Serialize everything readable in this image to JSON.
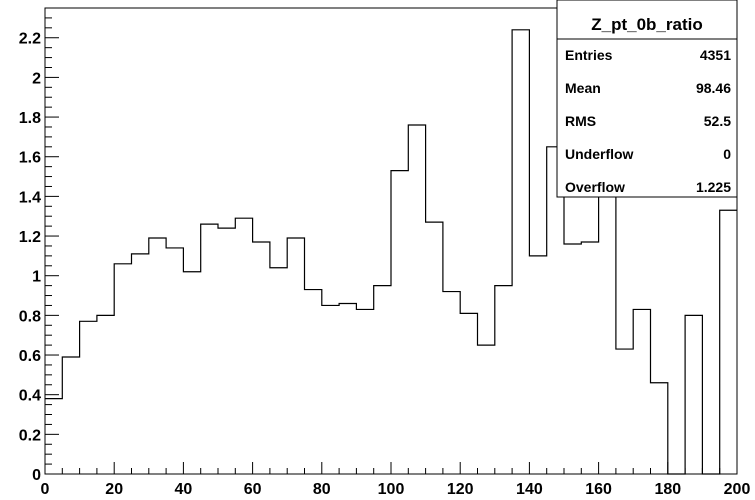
{
  "chart_data": {
    "type": "histogram",
    "title": "",
    "xlabel": "",
    "ylabel": "",
    "xlim": [
      0,
      200
    ],
    "ylim": [
      0,
      2.35
    ],
    "x_ticks": [
      "0",
      "20",
      "40",
      "60",
      "80",
      "100",
      "120",
      "140",
      "160",
      "180",
      "200"
    ],
    "y_ticks": [
      "0",
      "0.2",
      "0.4",
      "0.6",
      "0.8",
      "1",
      "1.2",
      "1.4",
      "1.6",
      "1.8",
      "2",
      "2.2"
    ],
    "bin_width": 5,
    "bin_edges_start": 0,
    "values": [
      0.38,
      0.59,
      0.77,
      0.8,
      1.06,
      1.11,
      1.19,
      1.14,
      1.02,
      1.26,
      1.24,
      1.29,
      1.17,
      1.04,
      1.19,
      0.93,
      0.85,
      0.86,
      0.83,
      0.95,
      1.53,
      1.76,
      1.27,
      0.92,
      0.81,
      0.65,
      0.95,
      2.24,
      1.1,
      1.65,
      1.16,
      1.17,
      1.48,
      0.63,
      0.83,
      0.46,
      0.0,
      0.8,
      0.0,
      1.33
    ],
    "grid": false,
    "stats_box": {
      "title": "Z_pt_0b_ratio",
      "rows": [
        {
          "label": "Entries",
          "value": "4351"
        },
        {
          "label": "Mean",
          "value": "98.46"
        },
        {
          "label": "RMS",
          "value": "52.5"
        },
        {
          "label": "Underflow",
          "value": "0"
        },
        {
          "label": "Overflow",
          "value": "1.225"
        }
      ],
      "placement": "top-right"
    }
  }
}
